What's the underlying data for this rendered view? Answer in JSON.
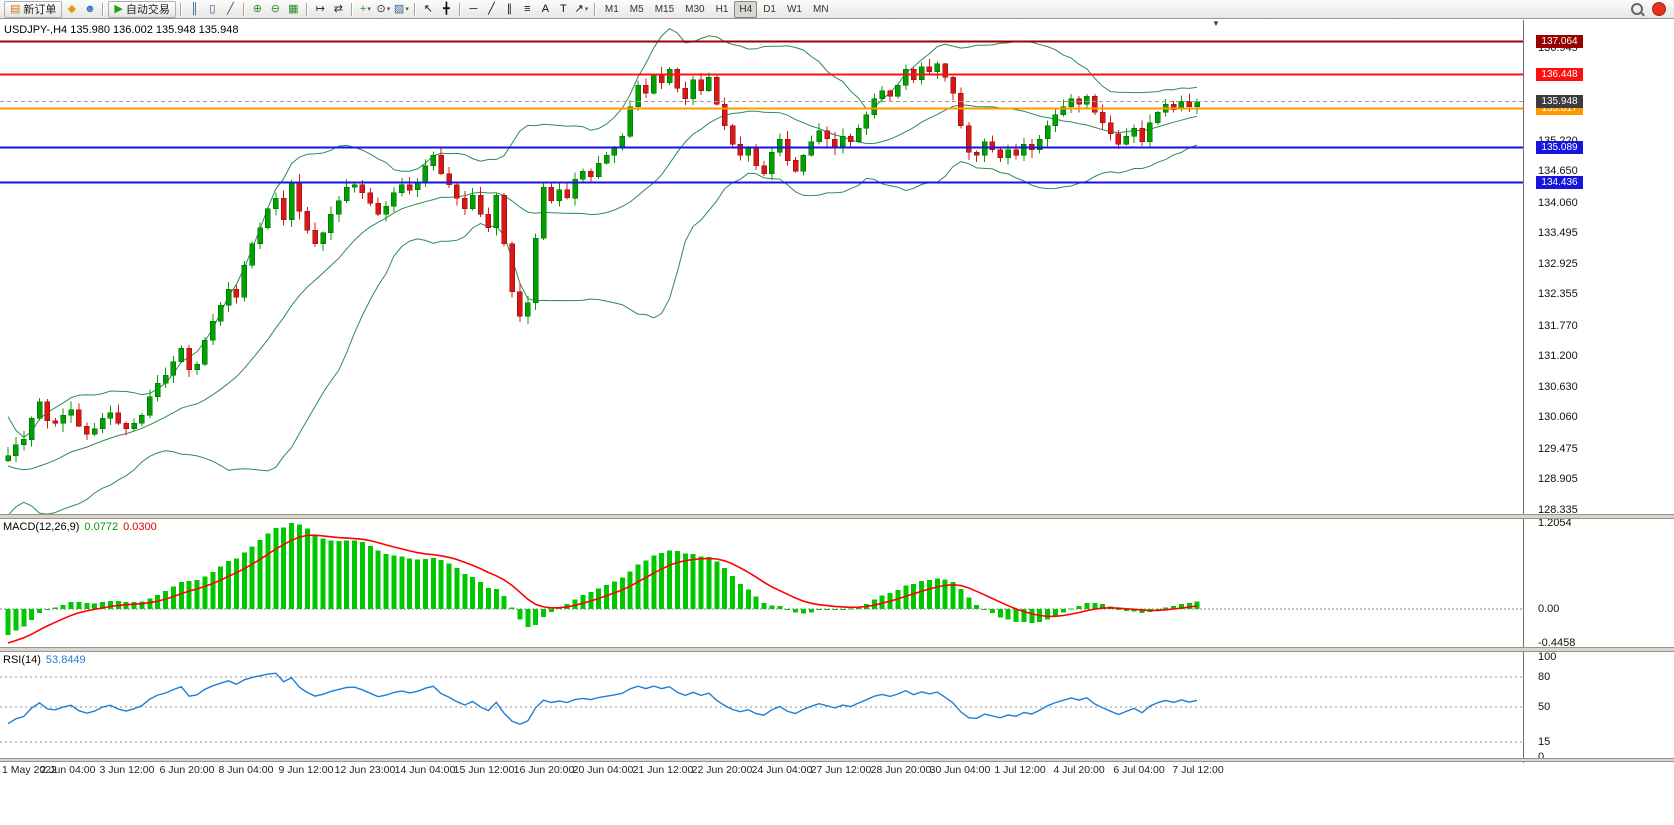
{
  "toolbar": {
    "items": [
      {
        "kind": "button",
        "name": "new-order",
        "glyph": "▤",
        "color": "#c87820",
        "label": "新订单"
      },
      {
        "kind": "icon",
        "name": "charts-grid",
        "glyph": "◆",
        "color": "#e0a018"
      },
      {
        "kind": "icon",
        "name": "community",
        "glyph": "☻",
        "color": "#3b78c4"
      },
      {
        "kind": "sep"
      },
      {
        "kind": "button",
        "name": "autotrading",
        "glyph": "▶",
        "color": "#1ca01c",
        "label": "自动交易"
      },
      {
        "kind": "sep"
      },
      {
        "kind": "icon",
        "name": "bar-chart",
        "glyph": "║",
        "color": "#225588"
      },
      {
        "kind": "icon",
        "name": "candlestick-chart",
        "glyph": "▯",
        "color": "#225588"
      },
      {
        "kind": "icon",
        "name": "line-chart",
        "glyph": "╱",
        "color": "#225588"
      },
      {
        "kind": "sep"
      },
      {
        "kind": "icon",
        "name": "zoom-in",
        "glyph": "⊕",
        "color": "#2a8a2a"
      },
      {
        "kind": "icon",
        "name": "zoom-out",
        "glyph": "⊖",
        "color": "#2a8a2a"
      },
      {
        "kind": "icon",
        "name": "tile-windows",
        "glyph": "▦",
        "color": "#2a8a2a"
      },
      {
        "kind": "sep"
      },
      {
        "kind": "icon",
        "name": "auto-scroll",
        "glyph": "↦",
        "color": "#333333"
      },
      {
        "kind": "icon",
        "name": "chart-shift",
        "glyph": "⇄",
        "color": "#333333"
      },
      {
        "kind": "sep"
      },
      {
        "kind": "icon",
        "name": "indicators",
        "glyph": "+",
        "color": "#1ca01c",
        "arrow": true
      },
      {
        "kind": "icon",
        "name": "periods",
        "glyph": "⊙",
        "color": "#333333",
        "arrow": true
      },
      {
        "kind": "icon",
        "name": "templates",
        "glyph": "▨",
        "color": "#336699",
        "arrow": true
      },
      {
        "kind": "sep"
      },
      {
        "kind": "icon",
        "name": "cursor",
        "glyph": "↖",
        "color": "#111111"
      },
      {
        "kind": "icon",
        "name": "crosshair",
        "glyph": "╋",
        "color": "#111111"
      },
      {
        "kind": "sep"
      },
      {
        "kind": "icon",
        "name": "horizontal-line",
        "glyph": "─",
        "color": "#111111"
      },
      {
        "kind": "icon",
        "name": "trendline",
        "glyph": "╱",
        "color": "#111111"
      },
      {
        "kind": "icon",
        "name": "channel",
        "glyph": "∥",
        "color": "#111111"
      },
      {
        "kind": "icon",
        "name": "fibonacci",
        "glyph": "≡",
        "color": "#111111"
      },
      {
        "kind": "icon",
        "name": "text-tool",
        "glyph": "A",
        "color": "#111111"
      },
      {
        "kind": "icon",
        "name": "label-tool",
        "glyph": "T",
        "color": "#111111"
      },
      {
        "kind": "icon",
        "name": "arrows-tool",
        "glyph": "↗",
        "color": "#111111",
        "arrow": true
      },
      {
        "kind": "sep"
      },
      {
        "kind": "tf",
        "name": "timeframe-m1",
        "label": "M1"
      },
      {
        "kind": "tf",
        "name": "timeframe-m5",
        "label": "M5"
      },
      {
        "kind": "tf",
        "name": "timeframe-m15",
        "label": "M15"
      },
      {
        "kind": "tf",
        "name": "timeframe-m30",
        "label": "M30"
      },
      {
        "kind": "tf",
        "name": "timeframe-h1",
        "label": "H1"
      },
      {
        "kind": "tf",
        "name": "timeframe-h4",
        "label": "H4",
        "active": true
      },
      {
        "kind": "tf",
        "name": "timeframe-d1",
        "label": "D1"
      },
      {
        "kind": "tf",
        "name": "timeframe-w1",
        "label": "W1"
      },
      {
        "kind": "tf",
        "name": "timeframe-mn",
        "label": "MN"
      }
    ]
  },
  "icons": {
    "shift_marker": "▼"
  },
  "chart_data": {
    "type": "candlestick",
    "symbol_period": "USDJPY-,H4",
    "ohlc_line": "USDJPY-,H4  135.980 136.002 135.948 135.948",
    "ylim": [
      128.26,
      137.467
    ],
    "up_color": "#00a000",
    "down_color": "#d81818",
    "bollinger": {
      "period": 20,
      "deviation": 2,
      "color": "#2e8b57"
    },
    "closes_pad": [
      130.9,
      130.5,
      130.1,
      129.7,
      129.3,
      129.0,
      128.75,
      128.6,
      128.7,
      128.95,
      128.85,
      128.7,
      128.9,
      129.1,
      129.0,
      129.15,
      129.05,
      129.0,
      129.15,
      129.25
    ],
    "closes": [
      129.35,
      129.55,
      129.65,
      130.05,
      130.35,
      130.0,
      129.95,
      130.1,
      130.2,
      129.9,
      129.75,
      129.85,
      130.05,
      130.15,
      129.95,
      129.85,
      129.95,
      130.1,
      130.45,
      130.7,
      130.85,
      131.1,
      131.35,
      130.95,
      131.05,
      131.5,
      131.85,
      132.15,
      132.45,
      132.3,
      132.9,
      133.3,
      133.6,
      133.95,
      134.15,
      133.75,
      134.45,
      133.9,
      133.55,
      133.3,
      133.5,
      133.85,
      134.1,
      134.35,
      134.4,
      134.25,
      134.05,
      133.85,
      134.0,
      134.25,
      134.4,
      134.3,
      134.45,
      134.75,
      134.95,
      134.6,
      134.4,
      134.15,
      133.95,
      134.2,
      133.85,
      133.6,
      134.2,
      133.3,
      132.4,
      131.95,
      132.2,
      133.4,
      134.35,
      134.1,
      134.3,
      134.15,
      134.5,
      134.65,
      134.55,
      134.8,
      134.95,
      135.1,
      135.3,
      135.85,
      136.25,
      136.1,
      136.45,
      136.3,
      136.55,
      136.2,
      136.0,
      136.35,
      136.15,
      136.4,
      135.9,
      135.5,
      135.15,
      134.95,
      135.1,
      134.75,
      134.6,
      135.0,
      135.25,
      134.85,
      134.65,
      134.95,
      135.2,
      135.4,
      135.25,
      135.1,
      135.3,
      135.2,
      135.45,
      135.7,
      136.0,
      136.15,
      136.05,
      136.25,
      136.55,
      136.35,
      136.6,
      136.5,
      136.65,
      136.4,
      136.1,
      135.5,
      135.0,
      134.95,
      135.2,
      135.05,
      134.9,
      135.05,
      134.95,
      135.15,
      135.05,
      135.25,
      135.5,
      135.7,
      135.85,
      136.0,
      135.9,
      136.05,
      135.75,
      135.55,
      135.35,
      135.15,
      135.3,
      135.45,
      135.2,
      135.55,
      135.75,
      135.9,
      135.8,
      135.95,
      135.85,
      135.948
    ],
    "hlines": [
      {
        "price": 137.064,
        "label": "137.064",
        "color": "#990000"
      },
      {
        "price": 136.448,
        "label": "136.448",
        "color": "#ff1010"
      },
      {
        "price": 135.817,
        "label": "135.817",
        "color": "#ff9900"
      },
      {
        "price": 135.089,
        "label": "135.089",
        "color": "#1515dd"
      },
      {
        "price": 134.436,
        "label": "134.436",
        "color": "#1515dd"
      }
    ],
    "current_price": {
      "price": 135.948,
      "label": "135.948",
      "box_color": "#3c3c3c",
      "line_color": "#9a9a9a"
    },
    "price_ticks": [
      "136.945",
      "135.220",
      "134.650",
      "134.060",
      "133.495",
      "132.925",
      "132.355",
      "131.770",
      "131.200",
      "130.630",
      "130.060",
      "129.475",
      "128.905",
      "128.335"
    ],
    "time_ticks": [
      "1 May 2022",
      "2 Jun 04:00",
      "3 Jun 12:00",
      "6 Jun 20:00",
      "8 Jun 04:00",
      "9 Jun 12:00",
      "12 Jun 23:00",
      "14 Jun 04:00",
      "15 Jun 12:00",
      "16 Jun 20:00",
      "20 Jun 04:00",
      "21 Jun 12:00",
      "22 Jun 20:00",
      "24 Jun 04:00",
      "27 Jun 12:00",
      "28 Jun 20:00",
      "30 Jun 04:00",
      "1 Jul 12:00",
      "4 Jul 20:00",
      "6 Jul 04:00",
      "7 Jul 12:00"
    ],
    "macd": {
      "label": "MACD(12,26,9)",
      "values_text": [
        "0.0772",
        "0.0300"
      ],
      "params": [
        12,
        26,
        9
      ],
      "hist_color": "#00c800",
      "signal_color": "#ff0000",
      "scale_labels": [
        "1.2054",
        "0.00",
        "-0.4458"
      ]
    },
    "rsi": {
      "label": "RSI(14)",
      "value_text": "53.8449",
      "period": 14,
      "color": "#1f7fd8",
      "levels": [
        100,
        80,
        50,
        15,
        0
      ],
      "dashed_levels": [
        80,
        50,
        15
      ]
    }
  }
}
